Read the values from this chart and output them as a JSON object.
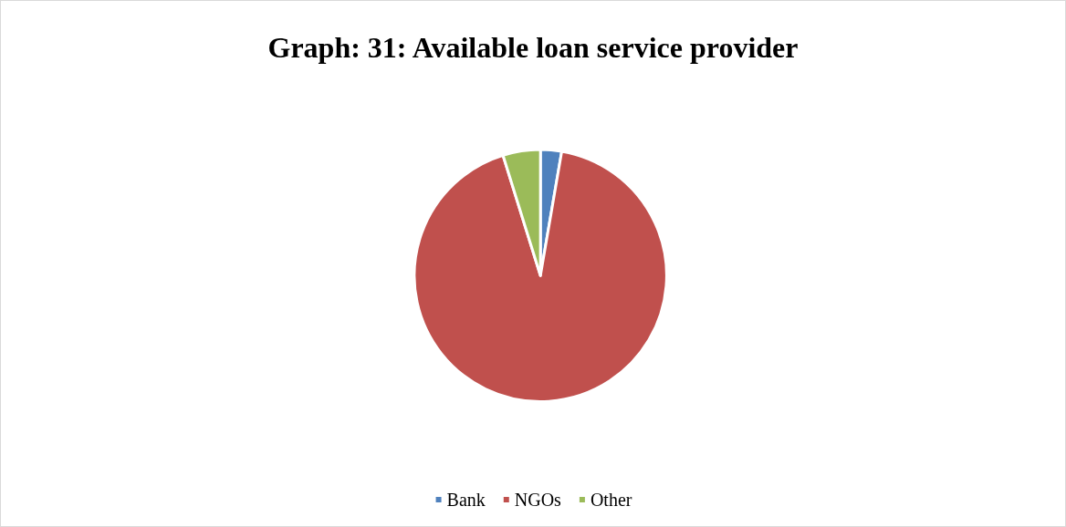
{
  "chart_data": {
    "type": "pie",
    "title": "Graph: 31: Available loan service provider",
    "categories": [
      "Bank",
      "NGOs",
      "Other"
    ],
    "values": [
      2.7,
      92.5,
      4.8
    ],
    "colors": [
      "#4f81bd",
      "#c0504d",
      "#9bbb59"
    ],
    "legend": "bottom"
  }
}
